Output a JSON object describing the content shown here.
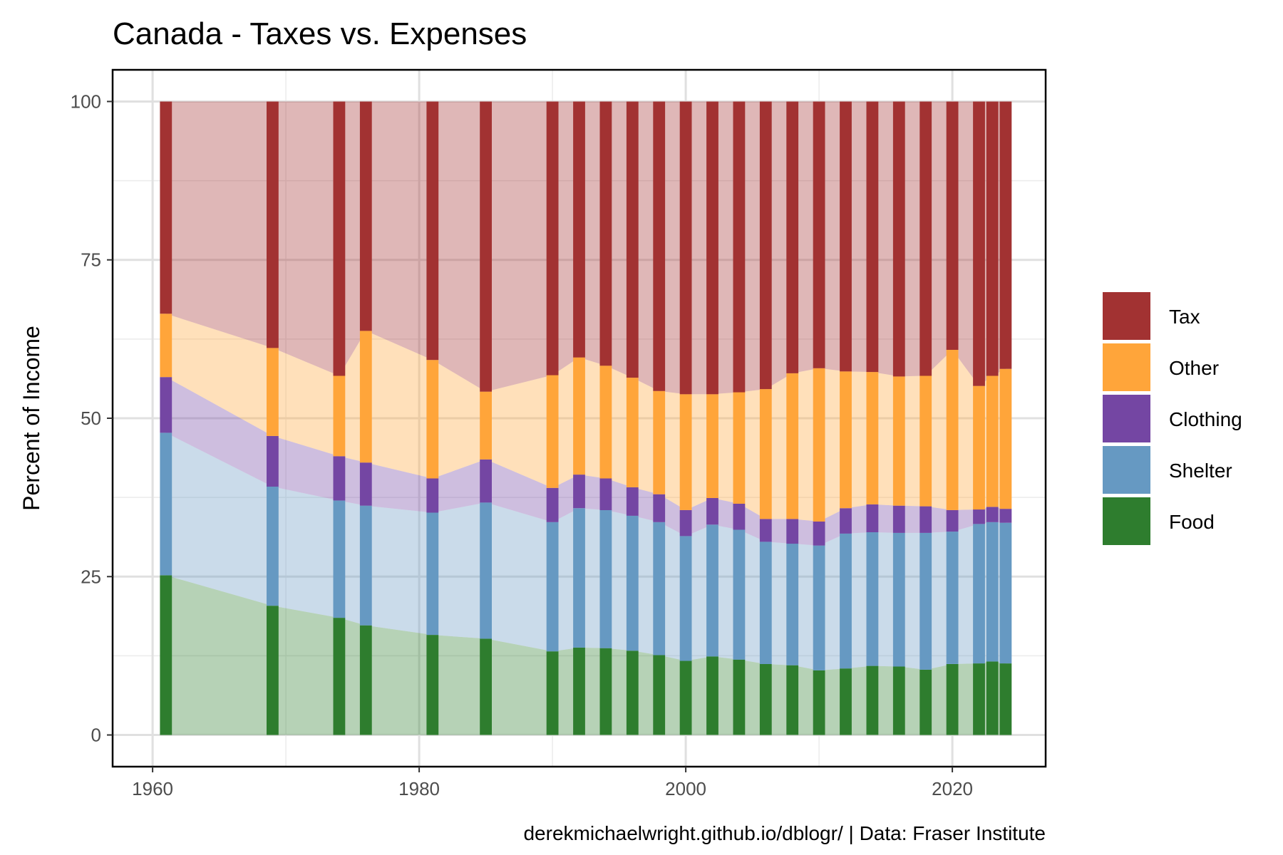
{
  "chart_data": {
    "type": "area",
    "title": "Canada - Taxes vs. Expenses",
    "xlabel": "",
    "ylabel": "Percent of Income",
    "caption": "derekmichaelwright.github.io/dblogr/ | Data: Fraser Institute",
    "xlim": [
      1957,
      2027
    ],
    "ylim": [
      -5,
      105
    ],
    "x_ticks": [
      1960,
      1980,
      2000,
      2020
    ],
    "y_ticks": [
      0,
      25,
      50,
      75,
      100
    ],
    "grid": true,
    "legend_position": "right",
    "x": [
      1961,
      1969,
      1974,
      1976,
      1981,
      1985,
      1990,
      1992,
      1994,
      1996,
      1998,
      2000,
      2002,
      2004,
      2006,
      2008,
      2010,
      2012,
      2014,
      2016,
      2018,
      2020,
      2022,
      2023,
      2024
    ],
    "series": [
      {
        "name": "Food",
        "color": "#2e7d2e",
        "values": [
          25.2,
          20.4,
          18.5,
          17.3,
          15.8,
          15.2,
          13.2,
          13.8,
          13.7,
          13.3,
          12.6,
          11.7,
          12.4,
          11.9,
          11.2,
          11.0,
          10.2,
          10.5,
          10.9,
          10.8,
          10.3,
          11.2,
          11.3,
          11.6,
          11.3
        ]
      },
      {
        "name": "Shelter",
        "color": "#6699c2",
        "values": [
          22.5,
          18.8,
          18.5,
          18.9,
          19.3,
          21.5,
          20.4,
          22.0,
          21.8,
          21.3,
          21.0,
          19.7,
          20.8,
          20.5,
          19.3,
          19.2,
          19.7,
          21.3,
          21.1,
          21.1,
          21.6,
          20.9,
          22.0,
          22.0,
          22.2
        ]
      },
      {
        "name": "Clothing",
        "color": "#7446a3",
        "values": [
          8.8,
          8.0,
          7.0,
          6.8,
          5.4,
          6.8,
          5.4,
          5.3,
          5.0,
          4.5,
          4.4,
          4.1,
          4.2,
          4.1,
          3.6,
          3.9,
          3.8,
          4.0,
          4.4,
          4.3,
          4.2,
          3.4,
          2.3,
          2.4,
          2.2
        ]
      },
      {
        "name": "Other",
        "color": "#ffa53a",
        "values": [
          10.0,
          13.9,
          12.7,
          20.8,
          18.7,
          10.7,
          17.8,
          18.5,
          17.8,
          17.3,
          16.3,
          18.3,
          16.4,
          17.6,
          20.5,
          23.0,
          24.2,
          21.6,
          20.9,
          20.4,
          20.6,
          25.3,
          19.5,
          20.7,
          22.1
        ]
      },
      {
        "name": "Tax",
        "color": "#a23232",
        "values": [
          33.5,
          38.9,
          43.3,
          36.2,
          40.8,
          45.8,
          43.2,
          40.4,
          41.7,
          43.6,
          45.7,
          46.2,
          46.2,
          45.9,
          45.4,
          42.9,
          42.1,
          42.6,
          42.7,
          43.4,
          43.3,
          39.2,
          44.9,
          43.3,
          42.2
        ]
      }
    ]
  }
}
